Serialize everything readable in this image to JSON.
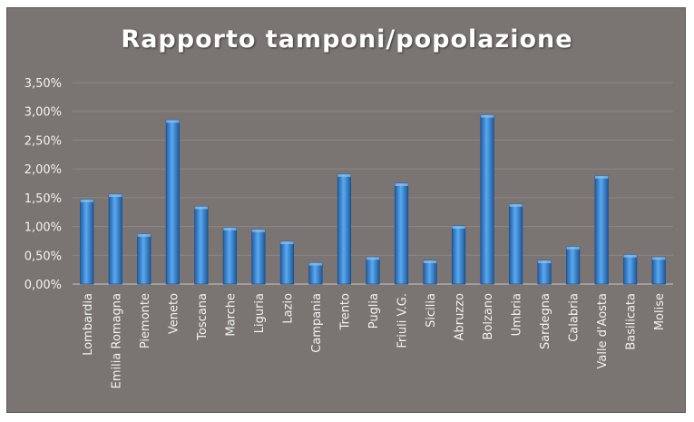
{
  "chart_data": {
    "type": "bar",
    "title": "Rapporto tamponi/popolazione",
    "xlabel": "",
    "ylabel": "",
    "ylim": [
      0,
      0.035
    ],
    "yticks": [
      "0,00%",
      "0,50%",
      "1,00%",
      "1,50%",
      "2,00%",
      "2,50%",
      "3,00%",
      "3,50%"
    ],
    "grid": true,
    "legend": "none",
    "bar_color": "#3b8fd8",
    "categories": [
      "Lombardia",
      "Emilia Romagna",
      "Piemonte",
      "Veneto",
      "Toscana",
      "Marche",
      "Liguria",
      "Lazio",
      "Campania",
      "Trento",
      "Puglia",
      "Friuli V.G.",
      "Sicilia",
      "Abruzzo",
      "Bolzano",
      "Umbria",
      "Sardegna",
      "Calabria",
      "Valle d'Aosta",
      "Basilicata",
      "Molise"
    ],
    "values": [
      0.0147,
      0.0156,
      0.0087,
      0.0285,
      0.0135,
      0.0098,
      0.0095,
      0.0074,
      0.0037,
      0.0191,
      0.0047,
      0.0175,
      0.0041,
      0.0101,
      0.0294,
      0.0139,
      0.0041,
      0.0065,
      0.0188,
      0.0051,
      0.0047
    ]
  }
}
